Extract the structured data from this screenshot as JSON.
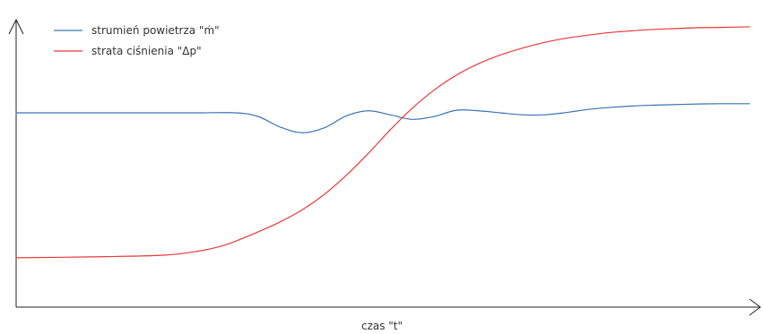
{
  "chart_data": {
    "type": "line",
    "title": "",
    "xlabel": "czas \"t\"",
    "ylabel": "",
    "xlim": [
      0,
      100
    ],
    "ylim": [
      0,
      100
    ],
    "grid": false,
    "legend_position": "top-left",
    "axis_color": "#222222",
    "series": [
      {
        "name": "strumień powietrza \"ṁ\"",
        "color": "#3a73b5",
        "x": [
          0,
          10,
          20,
          25,
          30,
          33,
          36,
          39,
          42,
          45,
          48,
          51,
          54,
          57,
          60,
          63,
          66,
          69,
          72,
          75,
          78,
          81,
          84,
          87,
          90,
          93,
          96,
          100
        ],
        "values": [
          67.3,
          67.3,
          67.3,
          67.3,
          67.3,
          66.0,
          62.3,
          60.3,
          62.0,
          66.2,
          68.0,
          66.6,
          65.0,
          66.0,
          68.2,
          68.0,
          67.3,
          66.6,
          66.6,
          67.4,
          68.5,
          69.2,
          69.7,
          70.0,
          70.2,
          70.4,
          70.5,
          70.5
        ]
      },
      {
        "name": "strata ciśnienia \"Δp\"",
        "color": "#e8393a",
        "x": [
          0,
          10,
          20,
          25,
          28,
          30,
          33,
          36,
          39,
          42,
          45,
          48,
          51,
          54,
          57,
          60,
          63,
          66,
          69,
          72,
          75,
          78,
          81,
          84,
          87,
          90,
          93,
          96,
          100
        ],
        "values": [
          16.4,
          16.7,
          17.3,
          18.8,
          20.5,
          22.3,
          25.5,
          29.0,
          33.2,
          38.6,
          45.3,
          53.0,
          61.3,
          68.9,
          75.3,
          80.5,
          84.5,
          87.6,
          90.0,
          92.0,
          93.5,
          94.6,
          95.5,
          96.1,
          96.6,
          96.9,
          97.2,
          97.3,
          97.5
        ]
      }
    ]
  }
}
